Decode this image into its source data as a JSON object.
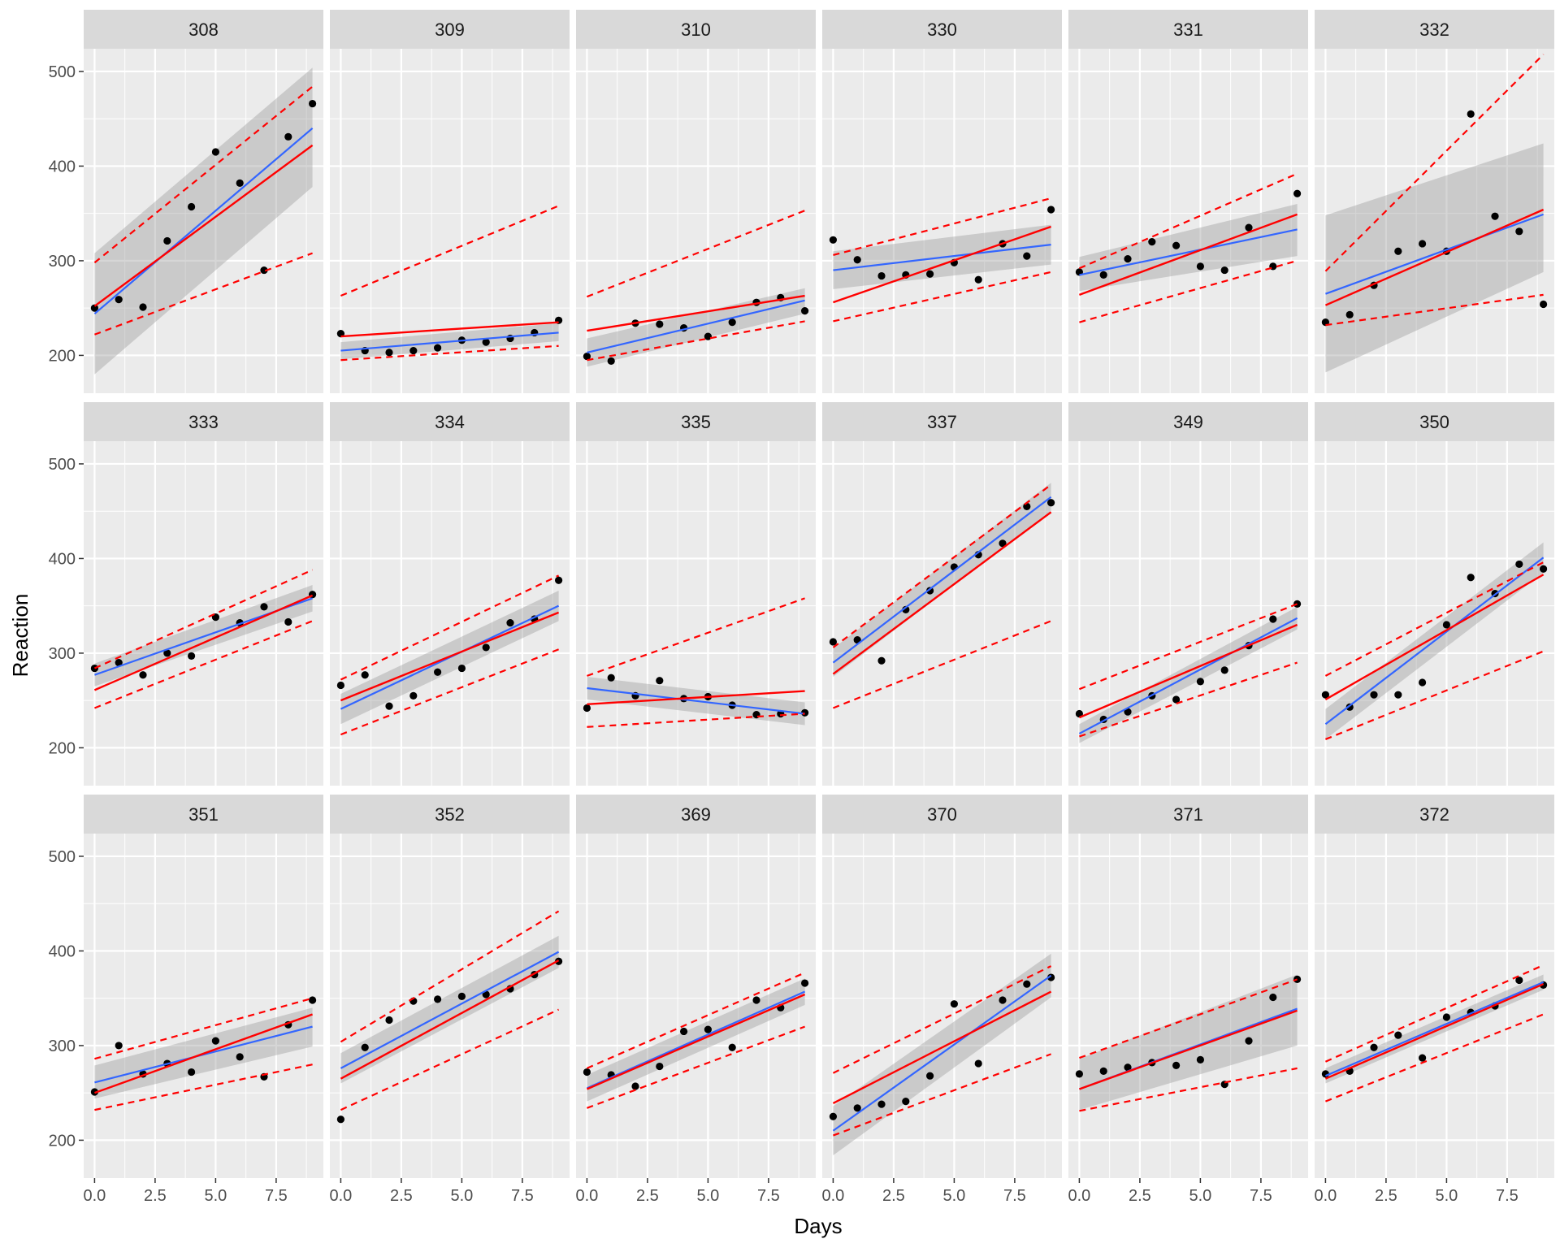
{
  "chart_data": {
    "type": "scatter",
    "title": "",
    "xlabel": "Days",
    "ylabel": "Reaction",
    "xlim": [
      -0.45,
      9.45
    ],
    "ylim": [
      160,
      524
    ],
    "x_ticks": [
      0,
      2.5,
      5,
      7.5
    ],
    "x_tick_labels": [
      "0.0",
      "2.5",
      "5.0",
      "7.5"
    ],
    "y_ticks": [
      200,
      300,
      400,
      500
    ],
    "y_tick_labels": [
      "200",
      "300",
      "400",
      "500"
    ],
    "grid": true,
    "facet_layout": {
      "rows": 3,
      "cols": 6
    },
    "series_styles": {
      "points": "#000000",
      "blue_fit": "#3366FF",
      "red_fit": "#FF0000",
      "band": "#999999",
      "panel_bg": "#EBEBEB",
      "strip_bg": "#D9D9D9"
    },
    "days": [
      0,
      1,
      2,
      3,
      4,
      5,
      6,
      7,
      8,
      9
    ],
    "panels": [
      {
        "label": "308",
        "reaction": [
          250,
          259,
          251,
          321,
          357,
          415,
          382,
          290,
          431,
          466
        ],
        "blue_fit": [
          244,
          440
        ],
        "blue_band": [
          [
            180,
            308
          ],
          [
            378,
            504
          ]
        ],
        "red_fit": [
          252,
          422
        ],
        "red_band": [
          [
            222,
            298
          ],
          [
            308,
            484
          ]
        ]
      },
      {
        "label": "309",
        "reaction": [
          223,
          205,
          203,
          205,
          208,
          216,
          214,
          218,
          224,
          237
        ],
        "blue_fit": [
          205,
          224
        ],
        "blue_band": [
          [
            196,
            214
          ],
          [
            215,
            234
          ]
        ],
        "red_fit": [
          220,
          235
        ],
        "red_band": [
          [
            195,
            263
          ],
          [
            210,
            358
          ]
        ]
      },
      {
        "label": "310",
        "reaction": [
          199,
          194,
          234,
          233,
          229,
          220,
          235,
          256,
          261,
          247
        ],
        "blue_fit": [
          203,
          258
        ],
        "blue_band": [
          [
            188,
            218
          ],
          [
            244,
            271
          ]
        ],
        "red_fit": [
          226,
          263
        ],
        "red_band": [
          [
            195,
            262
          ],
          [
            236,
            353
          ]
        ]
      },
      {
        "label": "330",
        "reaction": [
          322,
          301,
          284,
          285,
          286,
          298,
          280,
          318,
          305,
          354
        ],
        "blue_fit": [
          290,
          317
        ],
        "blue_band": [
          [
            270,
            310
          ],
          [
            296,
            338
          ]
        ],
        "red_fit": [
          256,
          336
        ],
        "red_band": [
          [
            236,
            306
          ],
          [
            288,
            366
          ]
        ]
      },
      {
        "label": "331",
        "reaction": [
          288,
          285,
          302,
          320,
          316,
          294,
          290,
          335,
          294,
          371
        ],
        "blue_fit": [
          285,
          333
        ],
        "blue_band": [
          [
            268,
            304
          ],
          [
            305,
            360
          ]
        ],
        "red_fit": [
          264,
          349
        ],
        "red_band": [
          [
            235,
            292
          ],
          [
            300,
            392
          ]
        ]
      },
      {
        "label": "332",
        "reaction": [
          235,
          243,
          274,
          310,
          318,
          310,
          455,
          347,
          331,
          254
        ],
        "blue_fit": [
          265,
          349
        ],
        "blue_band": [
          [
            182,
            348
          ],
          [
            288,
            424
          ]
        ],
        "red_fit": [
          253,
          354
        ],
        "red_band": [
          [
            232,
            289
          ],
          [
            264,
            518
          ]
        ]
      },
      {
        "label": "333",
        "reaction": [
          284,
          290,
          277,
          300,
          297,
          338,
          332,
          349,
          333,
          362
        ],
        "blue_fit": [
          277,
          358
        ],
        "blue_band": [
          [
            265,
            289
          ],
          [
            344,
            372
          ]
        ],
        "red_fit": [
          261,
          361
        ],
        "red_band": [
          [
            242,
            284
          ],
          [
            334,
            388
          ]
        ]
      },
      {
        "label": "334",
        "reaction": [
          266,
          277,
          244,
          255,
          280,
          284,
          306,
          332,
          336,
          377
        ],
        "blue_fit": [
          241,
          350
        ],
        "blue_band": [
          [
            225,
            257
          ],
          [
            334,
            366
          ]
        ],
        "red_fit": [
          250,
          343
        ],
        "red_band": [
          [
            214,
            272
          ],
          [
            304,
            382
          ]
        ]
      },
      {
        "label": "335",
        "reaction": [
          242,
          274,
          255,
          271,
          252,
          254,
          245,
          235,
          236,
          237
        ],
        "blue_fit": [
          263,
          236
        ],
        "blue_band": [
          [
            251,
            275
          ],
          [
            224,
            248
          ]
        ],
        "red_fit": [
          246,
          260
        ],
        "red_band": [
          [
            222,
            276
          ],
          [
            236,
            358
          ]
        ]
      },
      {
        "label": "337",
        "reaction": [
          312,
          314,
          292,
          346,
          366,
          391,
          404,
          416,
          455,
          459
        ],
        "blue_fit": [
          290,
          465
        ],
        "blue_band": [
          [
            275,
            305
          ],
          [
            450,
            480
          ]
        ],
        "red_fit": [
          278,
          449
        ],
        "red_band": [
          [
            242,
            306
          ],
          [
            334,
            478
          ]
        ]
      },
      {
        "label": "349",
        "reaction": [
          236,
          230,
          238,
          255,
          251,
          270,
          282,
          308,
          336,
          352
        ],
        "blue_fit": [
          215,
          337
        ],
        "blue_band": [
          [
            205,
            225
          ],
          [
            325,
            349
          ]
        ],
        "red_fit": [
          232,
          330
        ],
        "red_band": [
          [
            212,
            262
          ],
          [
            290,
            352
          ]
        ]
      },
      {
        "label": "350",
        "reaction": [
          256,
          243,
          256,
          256,
          269,
          330,
          380,
          363,
          394,
          389
        ],
        "blue_fit": [
          225,
          401
        ],
        "blue_band": [
          [
            209,
            241
          ],
          [
            385,
            417
          ]
        ],
        "red_fit": [
          251,
          383
        ],
        "red_band": [
          [
            209,
            276
          ],
          [
            302,
            396
          ]
        ]
      },
      {
        "label": "351",
        "reaction": [
          251,
          300,
          270,
          281,
          272,
          305,
          288,
          267,
          322,
          348
        ],
        "blue_fit": [
          261,
          320
        ],
        "blue_band": [
          [
            244,
            279
          ],
          [
            299,
            340
          ]
        ],
        "red_fit": [
          250,
          333
        ],
        "red_band": [
          [
            232,
            286
          ],
          [
            280,
            350
          ]
        ]
      },
      {
        "label": "352",
        "reaction": [
          222,
          298,
          327,
          347,
          349,
          352,
          354,
          360,
          375,
          389
        ],
        "blue_fit": [
          276,
          399
        ],
        "blue_band": [
          [
            260,
            292
          ],
          [
            382,
            416
          ]
        ],
        "red_fit": [
          265,
          390
        ],
        "red_band": [
          [
            232,
            304
          ],
          [
            338,
            442
          ]
        ]
      },
      {
        "label": "369",
        "reaction": [
          272,
          269,
          257,
          278,
          315,
          317,
          298,
          348,
          340,
          366
        ],
        "blue_fit": [
          255,
          357
        ],
        "blue_band": [
          [
            241,
            269
          ],
          [
            343,
            371
          ]
        ],
        "red_fit": [
          254,
          354
        ],
        "red_band": [
          [
            234,
            276
          ],
          [
            320,
            377
          ]
        ]
      },
      {
        "label": "370",
        "reaction": [
          225,
          234,
          238,
          241,
          268,
          344,
          281,
          348,
          365,
          372
        ],
        "blue_fit": [
          210,
          374
        ],
        "blue_band": [
          [
            184,
            236
          ],
          [
            351,
            397
          ]
        ],
        "red_fit": [
          239,
          357
        ],
        "red_band": [
          [
            205,
            271
          ],
          [
            291,
            384
          ]
        ]
      },
      {
        "label": "371",
        "reaction": [
          270,
          273,
          277,
          282,
          279,
          285,
          259,
          305,
          351,
          370
        ],
        "blue_fit": [
          254,
          339
        ],
        "blue_band": [
          [
            232,
            286
          ],
          [
            300,
            375
          ]
        ],
        "red_fit": [
          254,
          337
        ],
        "red_band": [
          [
            231,
            287
          ],
          [
            276,
            370
          ]
        ]
      },
      {
        "label": "372",
        "reaction": [
          270,
          273,
          298,
          311,
          287,
          330,
          335,
          342,
          369,
          364
        ],
        "blue_fit": [
          268,
          367
        ],
        "blue_band": [
          [
            260,
            276
          ],
          [
            359,
            375
          ]
        ],
        "red_fit": [
          265,
          365
        ],
        "red_band": [
          [
            241,
            283
          ],
          [
            333,
            385
          ]
        ]
      }
    ]
  }
}
